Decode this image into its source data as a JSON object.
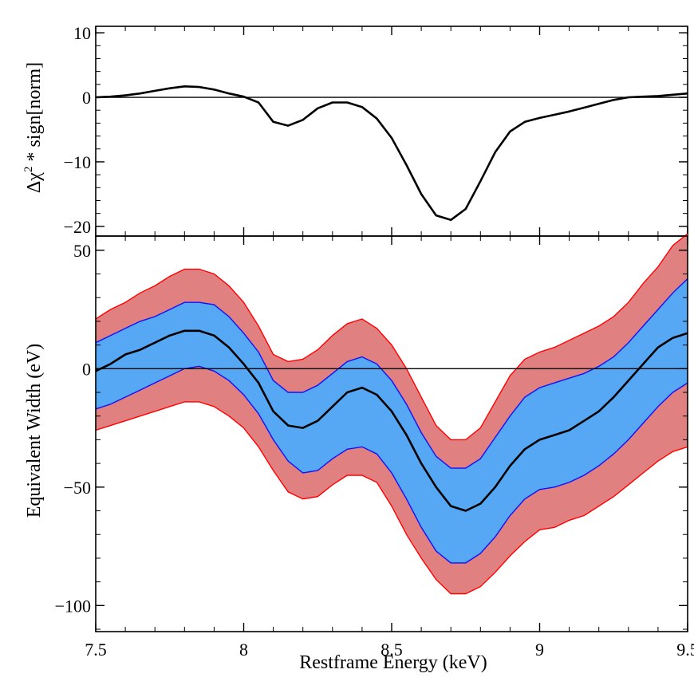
{
  "chart_data": [
    {
      "type": "line",
      "ylabel_parts": [
        "Δχ",
        "2",
        " * sign[norm]"
      ],
      "xlim": [
        7.5,
        9.5
      ],
      "ylim": [
        -21.5,
        11
      ],
      "yticks": [
        10,
        0,
        -10,
        -20
      ],
      "ytick_labels": [
        "10",
        "0",
        "−10",
        "−20"
      ],
      "grid": false,
      "zero_line": true,
      "series": [
        {
          "color": "#000000",
          "x": [
            7.5,
            7.55,
            7.6,
            7.65,
            7.7,
            7.75,
            7.8,
            7.85,
            7.9,
            7.95,
            8.0,
            8.05,
            8.1,
            8.15,
            8.2,
            8.25,
            8.3,
            8.35,
            8.4,
            8.45,
            8.5,
            8.55,
            8.6,
            8.65,
            8.7,
            8.75,
            8.8,
            8.85,
            8.9,
            8.95,
            9.0,
            9.05,
            9.1,
            9.15,
            9.2,
            9.25,
            9.3,
            9.35,
            9.4,
            9.45,
            9.5
          ],
          "y": [
            0,
            0.1,
            0.3,
            0.6,
            1.0,
            1.4,
            1.7,
            1.6,
            1.2,
            0.6,
            0.1,
            -0.8,
            -3.8,
            -4.4,
            -3.5,
            -1.7,
            -0.8,
            -0.8,
            -1.5,
            -3.3,
            -6.3,
            -10.5,
            -15.0,
            -18.3,
            -19.0,
            -17.3,
            -13.0,
            -8.5,
            -5.3,
            -3.8,
            -3.2,
            -2.7,
            -2.2,
            -1.6,
            -1.0,
            -0.4,
            0.0,
            0.1,
            0.2,
            0.4,
            0.6
          ]
        }
      ]
    },
    {
      "type": "area",
      "xlabel": "Restframe Energy (keV)",
      "ylabel": "Equivalent Width (eV)",
      "xlim": [
        7.5,
        9.5
      ],
      "ylim": [
        -111,
        56
      ],
      "xticks": [
        7.5,
        8,
        8.5,
        9,
        9.5
      ],
      "xtick_labels": [
        "7.5",
        "8",
        "8.5",
        "9",
        "9.5"
      ],
      "yticks": [
        50,
        0,
        -50,
        -100
      ],
      "ytick_labels": [
        "50",
        "0",
        "−50",
        "−100"
      ],
      "grid": false,
      "zero_line": true,
      "x": [
        7.5,
        7.55,
        7.6,
        7.65,
        7.7,
        7.75,
        7.8,
        7.85,
        7.9,
        7.95,
        8.0,
        8.05,
        8.1,
        8.15,
        8.2,
        8.25,
        8.3,
        8.35,
        8.4,
        8.45,
        8.5,
        8.55,
        8.6,
        8.65,
        8.7,
        8.75,
        8.8,
        8.85,
        8.9,
        8.95,
        9.0,
        9.05,
        9.1,
        9.15,
        9.2,
        9.25,
        9.3,
        9.35,
        9.4,
        9.45,
        9.5
      ],
      "series": [
        {
          "color": "#000000",
          "values": [
            -1,
            2,
            6,
            8,
            11,
            14,
            16,
            16,
            14,
            9,
            2,
            -6,
            -18,
            -24,
            -25,
            -22,
            -16,
            -10,
            -8,
            -11,
            -18,
            -28,
            -40,
            -50,
            -58,
            -60,
            -57,
            -50,
            -41,
            -34,
            -30,
            -28,
            -26,
            -22,
            -18,
            -12,
            -5,
            2,
            9,
            13,
            15
          ]
        }
      ],
      "bands": [
        {
          "fill": "#e08080",
          "edge": "#ff0000",
          "upper": [
            21,
            25,
            28,
            32,
            35,
            39,
            42,
            42,
            40,
            35,
            28,
            18,
            6,
            3,
            4,
            8,
            14,
            19,
            21,
            17,
            10,
            0,
            -12,
            -24,
            -30,
            -30,
            -25,
            -14,
            -3,
            4,
            7,
            9,
            12,
            15,
            18,
            22,
            28,
            36,
            43,
            52,
            57
          ],
          "lower": [
            -26,
            -24,
            -22,
            -20,
            -18,
            -16,
            -14,
            -14,
            -16,
            -20,
            -25,
            -33,
            -43,
            -52,
            -55,
            -54,
            -49,
            -45,
            -45,
            -48,
            -58,
            -70,
            -80,
            -89,
            -95,
            -95,
            -92,
            -86,
            -79,
            -73,
            -68,
            -67,
            -64,
            -62,
            -58,
            -54,
            -49,
            -44,
            -39,
            -35,
            -33
          ]
        },
        {
          "fill": "#56a8f5",
          "edge": "#1010ff",
          "upper": [
            11,
            14,
            17,
            20,
            22,
            25,
            28,
            28,
            27,
            22,
            15,
            7,
            -5,
            -10,
            -10,
            -7,
            -2,
            3,
            5,
            2,
            -5,
            -15,
            -27,
            -37,
            -42,
            -42,
            -38,
            -29,
            -20,
            -12,
            -8,
            -6,
            -4,
            -2,
            1,
            5,
            11,
            18,
            25,
            32,
            38
          ],
          "lower": [
            -17,
            -15,
            -12,
            -9,
            -6,
            -3,
            0,
            1,
            -1,
            -5,
            -11,
            -19,
            -30,
            -39,
            -44,
            -43,
            -38,
            -34,
            -33,
            -36,
            -44,
            -55,
            -67,
            -77,
            -82,
            -82,
            -78,
            -71,
            -62,
            -55,
            -51,
            -50,
            -48,
            -45,
            -41,
            -36,
            -30,
            -23,
            -16,
            -10,
            -6
          ]
        }
      ]
    }
  ]
}
